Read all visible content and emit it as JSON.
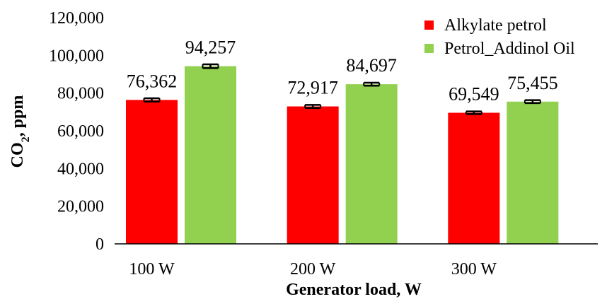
{
  "chart_data": {
    "type": "bar",
    "categories": [
      "100 W",
      "200 W",
      "300 W"
    ],
    "series": [
      {
        "name": "Alkylate petrol",
        "values": [
          76362,
          72917,
          69549
        ],
        "labels": [
          "76,362",
          "72,917",
          "69,549"
        ],
        "errors": [
          900,
          800,
          700
        ],
        "color": "#ff0000"
      },
      {
        "name": "Petrol_Addinol Oil",
        "values": [
          94257,
          84697,
          75455
        ],
        "labels": [
          "94,257",
          "84,697",
          "75,455"
        ],
        "errors": [
          1000,
          800,
          800
        ],
        "color": "#92d050"
      }
    ],
    "xlabel": "Generator load, W",
    "ylabel_main": "CO",
    "ylabel_sub": "2",
    "ylabel_rest": ", ppm",
    "ylim": [
      0,
      120000
    ],
    "yticks": [
      {
        "value": 0,
        "label": "0"
      },
      {
        "value": 20000,
        "label": "20,000"
      },
      {
        "value": 40000,
        "label": "40,000"
      },
      {
        "value": 60000,
        "label": "60,000"
      },
      {
        "value": 80000,
        "label": "80,000"
      },
      {
        "value": 100000,
        "label": "100,000"
      },
      {
        "value": 120000,
        "label": "120,000"
      }
    ],
    "grid": false,
    "legend_position": "top-right",
    "error_bars": true
  }
}
